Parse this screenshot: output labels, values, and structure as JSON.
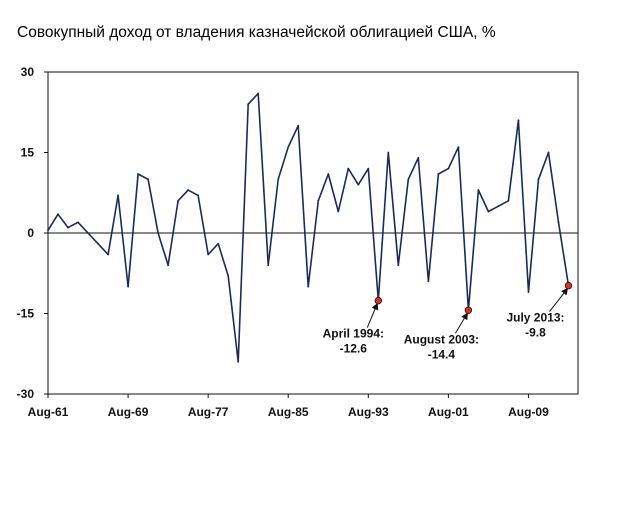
{
  "chart_data": {
    "type": "line",
    "title": "Совокупный доход от владения казначейской облигацией США, %",
    "xlabel": "",
    "ylabel": "",
    "x_range": [
      "Aug-61",
      "Aug-13"
    ],
    "ylim": [
      -30,
      30
    ],
    "y_ticks": [
      30,
      15,
      0,
      -15,
      -30
    ],
    "x_ticks": [
      "Aug-61",
      "Aug-69",
      "Aug-77",
      "Aug-85",
      "Aug-93",
      "Aug-01",
      "Aug-09"
    ],
    "grid": false,
    "legend": "none",
    "line_color": "#1b2a5e",
    "marker_color": "#c0392b",
    "series": [
      {
        "values": [
          {
            "x": "Aug-61",
            "y": 0.5
          },
          {
            "x": "Aug-62",
            "y": 3.5
          },
          {
            "x": "Aug-63",
            "y": 1
          },
          {
            "x": "Aug-64",
            "y": 2
          },
          {
            "x": "Aug-65",
            "y": 0
          },
          {
            "x": "Aug-66",
            "y": -2
          },
          {
            "x": "Aug-67",
            "y": -4
          },
          {
            "x": "Aug-68",
            "y": 7
          },
          {
            "x": "Aug-69",
            "y": -10
          },
          {
            "x": "Aug-70",
            "y": 11
          },
          {
            "x": "Aug-71",
            "y": 10
          },
          {
            "x": "Aug-72",
            "y": 0
          },
          {
            "x": "Aug-73",
            "y": -6
          },
          {
            "x": "Aug-74",
            "y": 6
          },
          {
            "x": "Aug-75",
            "y": 8
          },
          {
            "x": "Aug-76",
            "y": 7
          },
          {
            "x": "Aug-77",
            "y": -4
          },
          {
            "x": "Aug-78",
            "y": -2
          },
          {
            "x": "Aug-79",
            "y": -8
          },
          {
            "x": "Aug-80",
            "y": -24
          },
          {
            "x": "Aug-81",
            "y": 24
          },
          {
            "x": "Aug-82",
            "y": 26
          },
          {
            "x": "Aug-83",
            "y": -6
          },
          {
            "x": "Aug-84",
            "y": 10
          },
          {
            "x": "Aug-85",
            "y": 16
          },
          {
            "x": "Aug-86",
            "y": 20
          },
          {
            "x": "Aug-87",
            "y": -10
          },
          {
            "x": "Aug-88",
            "y": 6
          },
          {
            "x": "Aug-89",
            "y": 11
          },
          {
            "x": "Aug-90",
            "y": 4
          },
          {
            "x": "Aug-91",
            "y": 12
          },
          {
            "x": "Aug-92",
            "y": 9
          },
          {
            "x": "Aug-93",
            "y": 12
          },
          {
            "x": "Aug-94",
            "y": -12.6
          },
          {
            "x": "Aug-95",
            "y": 15
          },
          {
            "x": "Aug-96",
            "y": -6
          },
          {
            "x": "Aug-97",
            "y": 10
          },
          {
            "x": "Aug-98",
            "y": 14
          },
          {
            "x": "Aug-99",
            "y": -9
          },
          {
            "x": "Aug-00",
            "y": 11
          },
          {
            "x": "Aug-01",
            "y": 12
          },
          {
            "x": "Aug-02",
            "y": 16
          },
          {
            "x": "Aug-03",
            "y": -14.4
          },
          {
            "x": "Aug-04",
            "y": 8
          },
          {
            "x": "Aug-05",
            "y": 4
          },
          {
            "x": "Aug-06",
            "y": 5
          },
          {
            "x": "Aug-07",
            "y": 6
          },
          {
            "x": "Aug-08",
            "y": 21
          },
          {
            "x": "Aug-09",
            "y": -11
          },
          {
            "x": "Aug-10",
            "y": 10
          },
          {
            "x": "Aug-11",
            "y": 15
          },
          {
            "x": "Aug-12",
            "y": 2
          },
          {
            "x": "Aug-13",
            "y": -9.8
          }
        ]
      }
    ],
    "annotations": [
      {
        "x": "Aug-94",
        "y": -12.6,
        "lines": [
          "April 1994:",
          "-12.6"
        ]
      },
      {
        "x": "Aug-03",
        "y": -14.4,
        "lines": [
          "August 2003:",
          "-14.4"
        ]
      },
      {
        "x": "Aug-13",
        "y": -9.8,
        "lines": [
          "July 2013:",
          "-9.8"
        ]
      }
    ]
  }
}
